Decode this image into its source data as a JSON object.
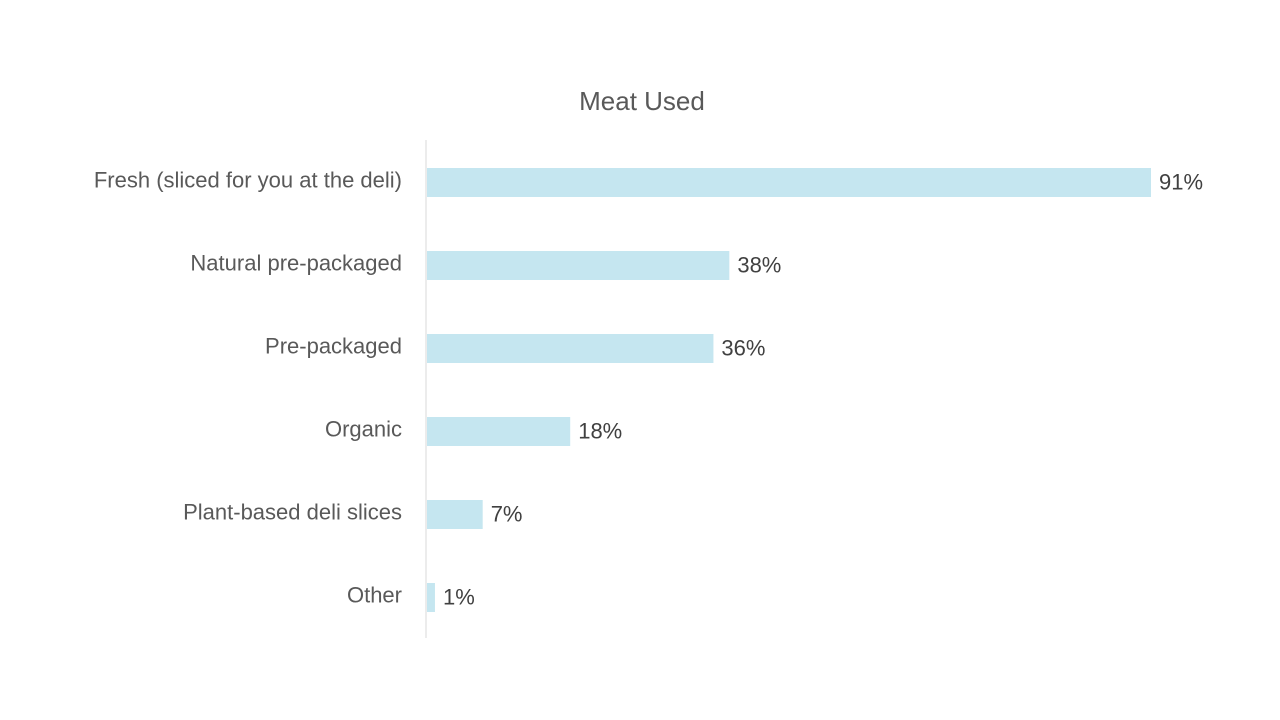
{
  "chart_data": {
    "type": "bar",
    "orientation": "horizontal",
    "title": "Meat Used",
    "categories": [
      "Fresh (sliced for you at the deli)",
      "Natural pre-packaged",
      "Pre-packaged",
      "Organic",
      "Plant-based deli slices",
      "Other"
    ],
    "values": [
      91,
      38,
      36,
      18,
      7,
      1
    ],
    "value_labels": [
      "91%",
      "38%",
      "36%",
      "18%",
      "7%",
      "1%"
    ],
    "unit": "%",
    "xlim": [
      0,
      100
    ],
    "grid": false,
    "legend": "none",
    "bar_color": "#c5e6f0",
    "axis_color": "#d9d9d9"
  }
}
